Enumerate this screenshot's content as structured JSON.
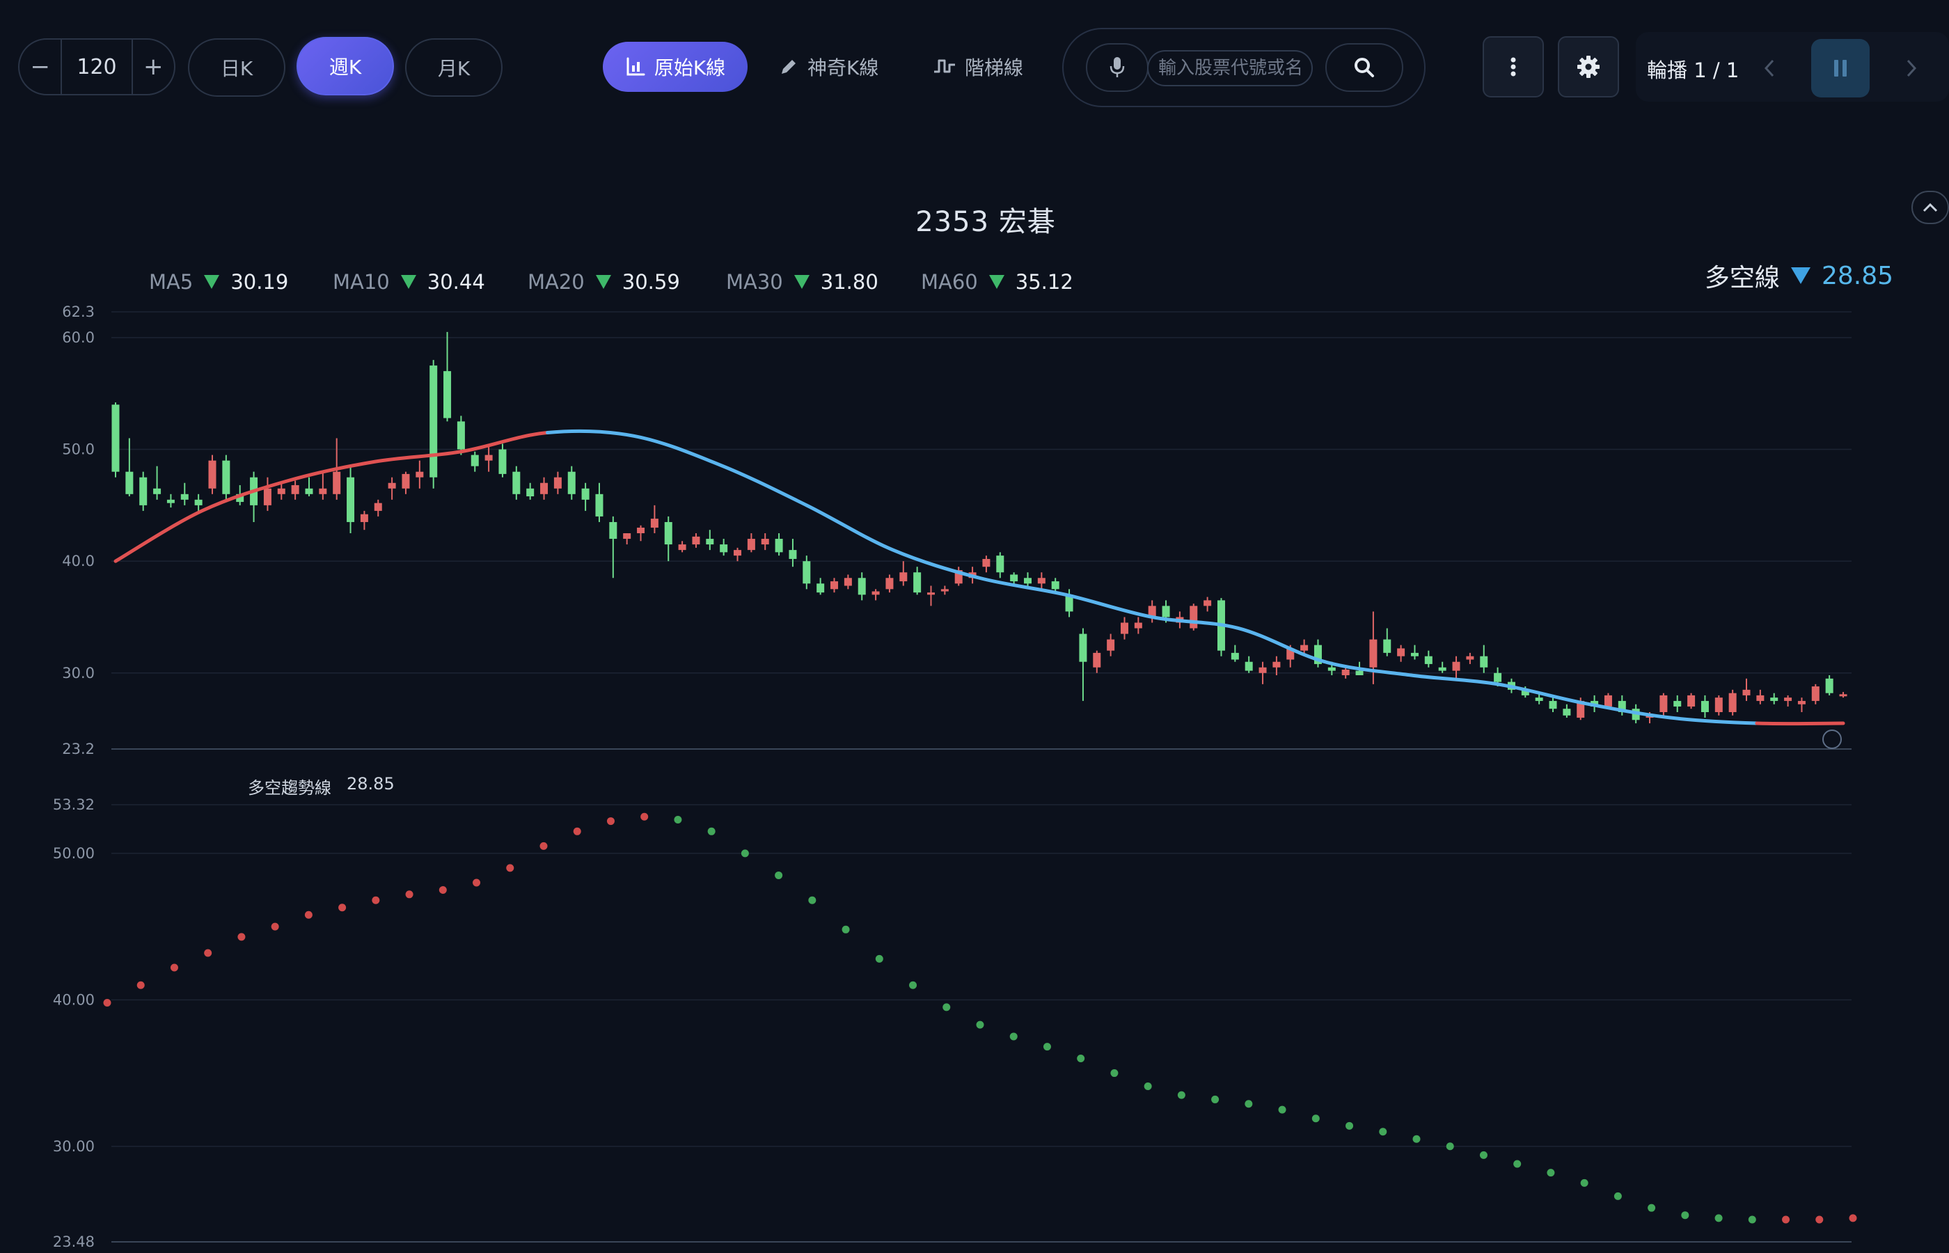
{
  "toolbar": {
    "stepper": {
      "minus": "−",
      "value": "120",
      "plus": "+"
    },
    "periods": [
      {
        "label": "日K",
        "active": false
      },
      {
        "label": "週K",
        "active": true
      },
      {
        "label": "月K",
        "active": false
      }
    ],
    "modes": [
      {
        "label": "原始K線",
        "icon": "chart-bars-icon",
        "active": true
      },
      {
        "label": "神奇K線",
        "icon": "pencil-icon",
        "active": false
      },
      {
        "label": "階梯線",
        "icon": "step-line-icon",
        "active": false
      }
    ],
    "search": {
      "placeholder": "輸入股票代號或名稱"
    },
    "rotation": {
      "label": "輪播 1 / 1"
    }
  },
  "stock": {
    "title": "2353 宏碁"
  },
  "ma_legend": [
    {
      "name": "MA5",
      "value": "30.19"
    },
    {
      "name": "MA10",
      "value": "30.44"
    },
    {
      "name": "MA20",
      "value": "30.59"
    },
    {
      "name": "MA30",
      "value": "31.80"
    },
    {
      "name": "MA60",
      "value": "35.12"
    }
  ],
  "trend_legend": {
    "name": "多空線",
    "value": "28.85"
  },
  "sub_legend": {
    "name": "多空趨勢線",
    "value": "28.85"
  },
  "colors": {
    "up": "#e06666",
    "down": "#6fdc8c",
    "trend_up": "#e05252",
    "trend_down": "#5ab4ee",
    "dot_up": "#d14b4b",
    "dot_down": "#43a85a",
    "accent": "#5b5ff0"
  },
  "chart_data": [
    {
      "type": "candlestick",
      "title": "2353 宏碁",
      "yticks": [
        "62.3",
        "60.0",
        "50.0",
        "40.0",
        "30.0",
        "23.2"
      ],
      "ylim": [
        23.2,
        62.3
      ],
      "grid": true,
      "candles": [
        [
          54.0,
          54.2,
          47.5,
          48.0
        ],
        [
          48.0,
          51.0,
          45.8,
          46.0
        ],
        [
          47.5,
          48.0,
          44.5,
          45.0
        ],
        [
          46.5,
          48.5,
          45.5,
          46.0
        ],
        [
          45.5,
          46.0,
          44.8,
          45.2
        ],
        [
          46.0,
          47.0,
          45.0,
          45.5
        ],
        [
          45.5,
          46.0,
          44.5,
          45.0
        ],
        [
          46.5,
          49.5,
          46.0,
          49.0
        ],
        [
          49.0,
          49.5,
          45.5,
          46.0
        ],
        [
          46.0,
          46.8,
          45.0,
          45.3
        ],
        [
          47.5,
          48.0,
          43.5,
          45.0
        ],
        [
          45.0,
          47.5,
          44.5,
          46.5
        ],
        [
          46.0,
          47.0,
          45.5,
          46.5
        ],
        [
          46.0,
          47.2,
          45.5,
          46.8
        ],
        [
          46.5,
          47.5,
          45.8,
          46.0
        ],
        [
          46.0,
          48.0,
          45.5,
          46.5
        ],
        [
          46.0,
          51.0,
          45.5,
          48.0
        ],
        [
          47.5,
          48.5,
          42.5,
          43.5
        ],
        [
          43.5,
          44.5,
          42.8,
          44.2
        ],
        [
          44.5,
          45.5,
          44.0,
          45.2
        ],
        [
          46.5,
          47.5,
          45.5,
          47.0
        ],
        [
          46.5,
          48.0,
          46.0,
          47.8
        ],
        [
          47.5,
          49.0,
          46.5,
          48.0
        ],
        [
          57.5,
          58.0,
          46.5,
          47.5
        ],
        [
          57.0,
          60.5,
          52.5,
          52.8
        ],
        [
          52.5,
          53.0,
          49.5,
          50.0
        ],
        [
          49.5,
          49.8,
          48.0,
          48.5
        ],
        [
          49.0,
          50.5,
          48.0,
          49.5
        ],
        [
          50.0,
          50.5,
          47.5,
          47.8
        ],
        [
          48.0,
          48.5,
          45.5,
          46.0
        ],
        [
          46.5,
          47.0,
          45.5,
          45.8
        ],
        [
          46.0,
          47.5,
          45.5,
          47.0
        ],
        [
          46.5,
          48.0,
          46.0,
          47.5
        ],
        [
          48.0,
          48.5,
          45.5,
          46.0
        ],
        [
          46.5,
          47.0,
          44.5,
          45.5
        ],
        [
          46.0,
          47.0,
          43.5,
          44.0
        ],
        [
          43.5,
          44.0,
          38.5,
          42.0
        ],
        [
          42.0,
          42.5,
          41.5,
          42.5
        ],
        [
          42.5,
          43.2,
          41.8,
          43.0
        ],
        [
          43.0,
          45.0,
          42.5,
          43.8
        ],
        [
          43.5,
          44.0,
          40.0,
          41.5
        ],
        [
          41.0,
          41.8,
          40.8,
          41.5
        ],
        [
          41.5,
          42.5,
          41.2,
          42.2
        ],
        [
          42.0,
          42.8,
          41.0,
          41.5
        ],
        [
          41.5,
          42.0,
          40.5,
          40.8
        ],
        [
          40.5,
          41.2,
          40.0,
          41.0
        ],
        [
          41.0,
          42.5,
          40.8,
          42.0
        ],
        [
          41.5,
          42.5,
          41.0,
          42.0
        ],
        [
          42.0,
          42.5,
          40.5,
          40.8
        ],
        [
          41.0,
          42.0,
          39.5,
          40.2
        ],
        [
          40.0,
          40.5,
          37.5,
          38.0
        ],
        [
          38.0,
          38.5,
          37.0,
          37.2
        ],
        [
          37.5,
          38.5,
          37.2,
          38.2
        ],
        [
          37.8,
          38.8,
          37.5,
          38.5
        ],
        [
          38.5,
          39.0,
          36.5,
          37.0
        ],
        [
          37.0,
          37.5,
          36.5,
          37.3
        ],
        [
          37.5,
          38.8,
          37.2,
          38.5
        ],
        [
          38.2,
          40.0,
          37.8,
          39.0
        ],
        [
          39.0,
          39.5,
          37.0,
          37.2
        ],
        [
          37.0,
          37.8,
          36.0,
          37.2
        ],
        [
          37.3,
          37.8,
          37.0,
          37.5
        ],
        [
          38.0,
          39.5,
          37.8,
          39.2
        ],
        [
          38.5,
          39.5,
          38.0,
          39.0
        ],
        [
          39.5,
          40.5,
          39.0,
          40.2
        ],
        [
          40.5,
          40.8,
          38.5,
          39.0
        ],
        [
          38.8,
          39.0,
          37.8,
          38.2
        ],
        [
          38.5,
          39.0,
          37.5,
          38.0
        ],
        [
          38.0,
          39.0,
          37.5,
          38.5
        ],
        [
          38.2,
          38.5,
          37.2,
          37.5
        ],
        [
          37.0,
          37.5,
          35.0,
          35.5
        ],
        [
          33.5,
          34.0,
          27.5,
          31.0
        ],
        [
          30.5,
          32.0,
          30.0,
          31.8
        ],
        [
          32.0,
          33.5,
          31.5,
          33.0
        ],
        [
          33.5,
          35.0,
          33.0,
          34.5
        ],
        [
          34.0,
          35.0,
          33.5,
          34.5
        ],
        [
          35.0,
          36.5,
          34.5,
          36.0
        ],
        [
          36.0,
          36.5,
          34.5,
          35.0
        ],
        [
          34.5,
          35.5,
          34.0,
          35.0
        ],
        [
          34.0,
          36.2,
          33.8,
          36.0
        ],
        [
          36.0,
          36.8,
          35.5,
          36.5
        ],
        [
          36.5,
          36.7,
          31.5,
          32.0
        ],
        [
          31.8,
          32.5,
          31.0,
          31.2
        ],
        [
          31.0,
          31.5,
          30.0,
          30.2
        ],
        [
          30.0,
          31.0,
          29.0,
          30.5
        ],
        [
          30.5,
          31.5,
          29.8,
          31.0
        ],
        [
          31.2,
          32.5,
          30.5,
          32.2
        ],
        [
          32.0,
          33.0,
          31.5,
          32.5
        ],
        [
          32.5,
          33.0,
          30.5,
          30.8
        ],
        [
          30.5,
          31.0,
          29.8,
          30.2
        ],
        [
          29.8,
          30.5,
          29.5,
          30.3
        ],
        [
          30.2,
          31.0,
          29.8,
          29.8
        ],
        [
          30.5,
          35.5,
          29.0,
          33.0
        ],
        [
          33.0,
          34.0,
          31.5,
          31.8
        ],
        [
          31.5,
          32.5,
          31.0,
          32.2
        ],
        [
          31.8,
          32.5,
          31.2,
          31.5
        ],
        [
          31.5,
          32.0,
          30.5,
          30.8
        ],
        [
          30.5,
          31.0,
          30.0,
          30.2
        ],
        [
          30.2,
          31.5,
          29.5,
          31.0
        ],
        [
          31.2,
          31.8,
          30.8,
          31.5
        ],
        [
          31.5,
          32.5,
          30.0,
          30.5
        ],
        [
          30.0,
          30.5,
          28.8,
          29.2
        ],
        [
          29.2,
          29.5,
          28.2,
          28.5
        ],
        [
          28.5,
          28.8,
          27.8,
          28.0
        ],
        [
          27.8,
          28.2,
          27.2,
          27.5
        ],
        [
          27.5,
          28.0,
          26.5,
          26.8
        ],
        [
          26.8,
          27.2,
          26.0,
          26.2
        ],
        [
          26.0,
          27.8,
          25.8,
          27.5
        ],
        [
          27.5,
          28.0,
          26.5,
          27.0
        ],
        [
          27.0,
          28.2,
          26.8,
          28.0
        ],
        [
          27.5,
          28.0,
          26.2,
          26.5
        ],
        [
          26.8,
          27.2,
          25.5,
          25.8
        ],
        [
          26.0,
          26.5,
          25.5,
          26.2
        ],
        [
          26.5,
          28.2,
          26.0,
          28.0
        ],
        [
          27.5,
          28.0,
          26.5,
          27.0
        ],
        [
          27.0,
          28.2,
          26.8,
          28.0
        ],
        [
          27.5,
          28.0,
          26.0,
          26.5
        ],
        [
          26.5,
          28.0,
          26.2,
          27.8
        ],
        [
          26.5,
          28.5,
          26.2,
          28.2
        ],
        [
          28.0,
          29.5,
          27.5,
          28.5
        ],
        [
          27.5,
          28.5,
          27.2,
          28.0
        ],
        [
          27.8,
          28.2,
          27.2,
          27.5
        ],
        [
          27.5,
          28.0,
          27.0,
          27.8
        ],
        [
          27.2,
          27.8,
          26.5,
          27.5
        ],
        [
          27.5,
          29.0,
          27.2,
          28.8
        ],
        [
          29.5,
          29.8,
          28.0,
          28.2
        ],
        [
          28.0,
          28.3,
          27.8,
          28.1
        ]
      ],
      "trend_line": {
        "name": "多空線",
        "values": [
          40.0,
          44.5,
          47.2,
          48.9,
          49.8,
          51.5,
          51.2,
          48.6,
          45.0,
          41.0,
          38.5,
          37.0,
          35.0,
          34.0,
          31.0,
          29.8,
          29.0,
          27.3,
          26.0,
          25.5,
          25.5
        ]
      }
    },
    {
      "type": "scatter",
      "name": "多空趨勢線",
      "yticks": [
        "53.32",
        "50.00",
        "40.00",
        "30.00",
        "23.48"
      ],
      "ylim": [
        23.48,
        53.32
      ],
      "grid": true,
      "values": [
        39.8,
        41.0,
        42.2,
        43.2,
        44.3,
        45.0,
        45.8,
        46.3,
        46.8,
        47.2,
        47.5,
        48.0,
        49.0,
        50.5,
        51.5,
        52.2,
        52.5,
        52.3,
        51.5,
        50.0,
        48.5,
        46.8,
        44.8,
        42.8,
        41.0,
        39.5,
        38.3,
        37.5,
        36.8,
        36.0,
        35.0,
        34.1,
        33.5,
        33.2,
        32.9,
        32.5,
        31.9,
        31.4,
        31.0,
        30.5,
        30.0,
        29.4,
        28.8,
        28.2,
        27.5,
        26.6,
        25.8,
        25.3,
        25.1,
        25.0,
        25.0,
        25.0,
        25.1
      ]
    }
  ]
}
